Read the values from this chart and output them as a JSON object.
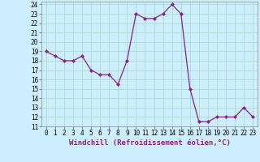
{
  "x": [
    0,
    1,
    2,
    3,
    4,
    5,
    6,
    7,
    8,
    9,
    10,
    11,
    12,
    13,
    14,
    15,
    16,
    17,
    18,
    19,
    20,
    21,
    22,
    23
  ],
  "y": [
    19,
    18.5,
    18,
    18,
    18.5,
    17,
    16.5,
    16.5,
    15.5,
    18,
    23,
    22.5,
    22.5,
    23,
    24,
    23,
    15,
    11.5,
    11.5,
    12,
    12,
    12,
    13,
    12
  ],
  "line_color": "#882288",
  "marker": "D",
  "marker_size": 2,
  "xlabel": "Windchill (Refroidissement éolien,°C)",
  "xlim": [
    -0.5,
    23.5
  ],
  "ylim": [
    11,
    24.3
  ],
  "yticks": [
    11,
    12,
    13,
    14,
    15,
    16,
    17,
    18,
    19,
    20,
    21,
    22,
    23,
    24
  ],
  "xticks": [
    0,
    1,
    2,
    3,
    4,
    5,
    6,
    7,
    8,
    9,
    10,
    11,
    12,
    13,
    14,
    15,
    16,
    17,
    18,
    19,
    20,
    21,
    22,
    23
  ],
  "bg_color": "#cceeff",
  "grid_color": "#aaddcc",
  "tick_label_fontsize": 5.5,
  "xlabel_fontsize": 6.5
}
